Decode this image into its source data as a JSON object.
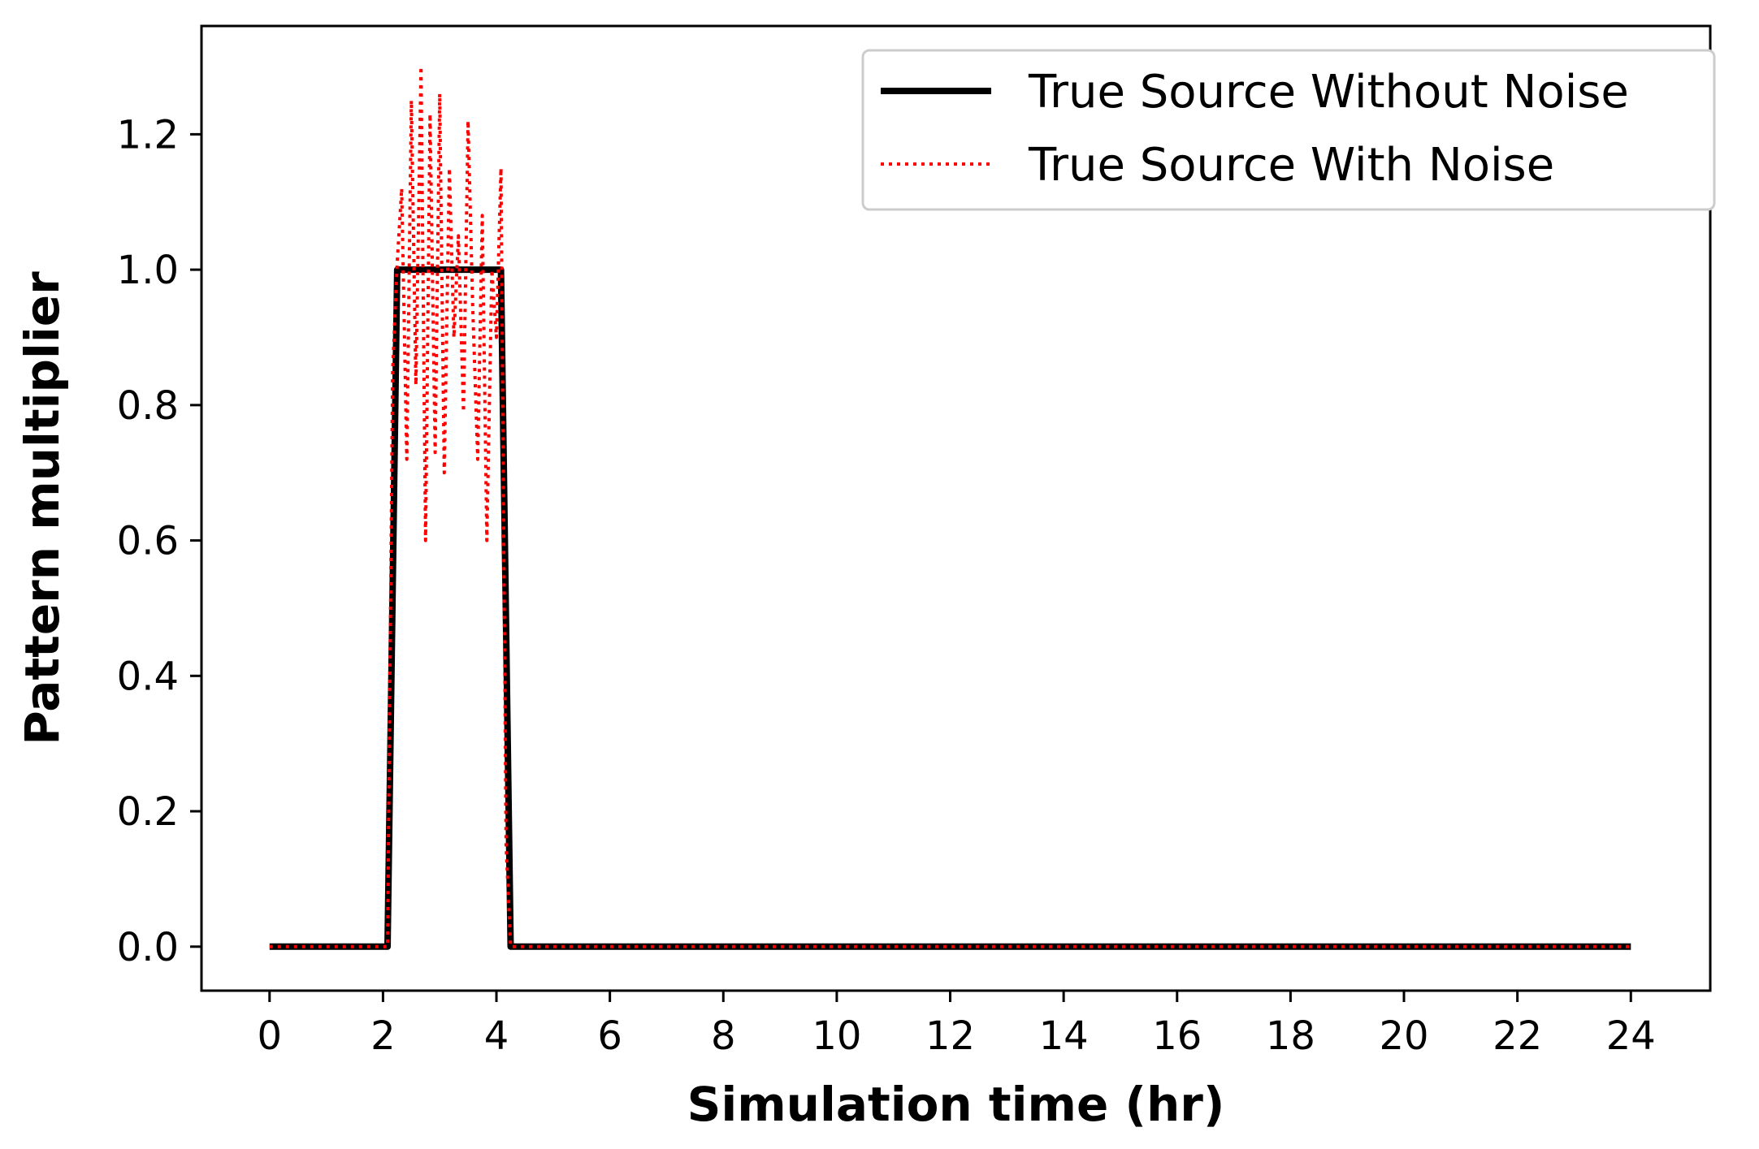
{
  "chart_data": {
    "type": "line",
    "xlabel": "Simulation time (hr)",
    "ylabel": "Pattern multiplier",
    "xlim": [
      -1.2,
      25.4
    ],
    "ylim": [
      -0.065,
      1.36
    ],
    "xticks": [
      0,
      2,
      4,
      6,
      8,
      10,
      12,
      14,
      16,
      18,
      20,
      22,
      24
    ],
    "yticks": [
      0.0,
      0.2,
      0.4,
      0.6,
      0.8,
      1.0,
      1.2
    ],
    "xtick_labels": [
      "0",
      "2",
      "4",
      "6",
      "8",
      "10",
      "12",
      "14",
      "16",
      "18",
      "20",
      "22",
      "24"
    ],
    "ytick_labels": [
      "0.0",
      "0.2",
      "0.4",
      "0.6",
      "0.8",
      "1.0",
      "1.2"
    ],
    "grid": false,
    "legend_position": "top-right",
    "series": [
      {
        "name": "True Source Without Noise",
        "color": "#000000",
        "style": "solid",
        "x": [
          0,
          2.08,
          2.25,
          4.08,
          4.25,
          24
        ],
        "y": [
          0,
          0,
          1.0,
          1.0,
          0,
          0
        ]
      },
      {
        "name": "True Source With Noise",
        "color": "#ff0000",
        "style": "dotted",
        "x": [
          0,
          2.08,
          2.17,
          2.25,
          2.33,
          2.42,
          2.5,
          2.58,
          2.67,
          2.75,
          2.83,
          2.92,
          3.0,
          3.08,
          3.17,
          3.25,
          3.33,
          3.42,
          3.5,
          3.58,
          3.67,
          3.75,
          3.83,
          3.92,
          4.0,
          4.08,
          4.17,
          4.25,
          24
        ],
        "y": [
          0,
          0,
          0.85,
          1.01,
          1.12,
          0.72,
          1.25,
          0.83,
          1.3,
          0.6,
          1.23,
          0.73,
          1.26,
          0.7,
          1.15,
          0.9,
          1.05,
          0.79,
          1.22,
          0.95,
          0.72,
          1.08,
          0.6,
          1.0,
          0.9,
          1.15,
          0.15,
          0,
          0
        ]
      }
    ]
  }
}
